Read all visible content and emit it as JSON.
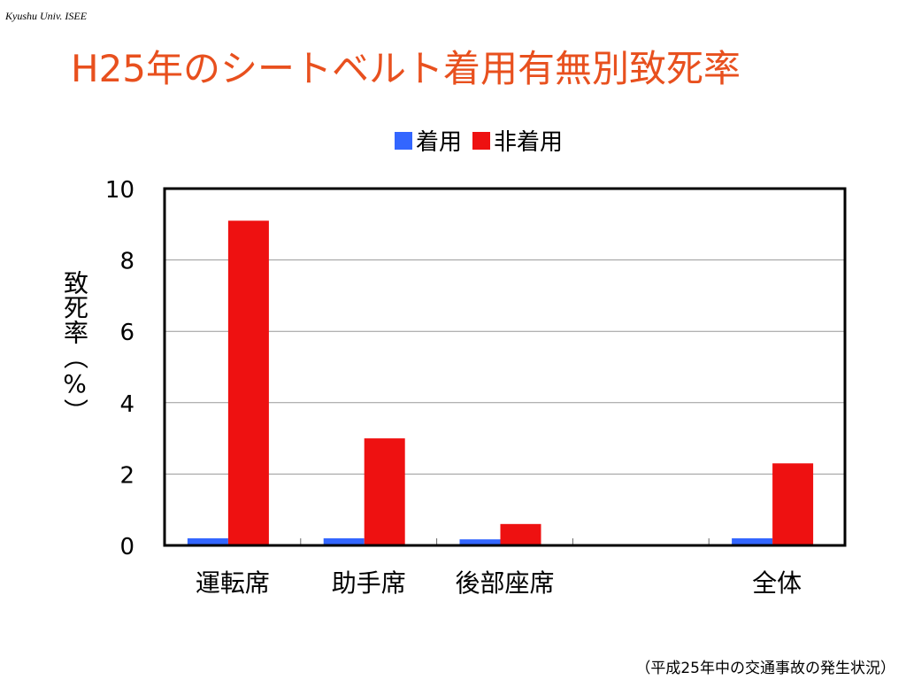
{
  "header": {
    "note": "Kyushu Univ. ISEE",
    "title": "H25年のシートベルト着用有無別致死率"
  },
  "legend": {
    "worn_label": "着用",
    "not_worn_label": "非着用"
  },
  "colors": {
    "worn": "#3366ff",
    "not_worn": "#ee1111",
    "title": "#e8501e"
  },
  "chart_data": {
    "type": "bar",
    "ylabel": "致死率（%）",
    "ylim": [
      0,
      10
    ],
    "yticks": [
      0,
      2,
      4,
      6,
      8,
      10
    ],
    "grid": true,
    "legend_position": "top-center",
    "categories": [
      "運転席",
      "助手席",
      "後部座席",
      "",
      "全体"
    ],
    "series": [
      {
        "name": "着用",
        "values": [
          0.2,
          0.2,
          0.17,
          null,
          0.2
        ]
      },
      {
        "name": "非着用",
        "values": [
          9.1,
          3.0,
          0.6,
          null,
          2.3
        ]
      }
    ]
  },
  "footer": {
    "source": "（平成25年中の交通事故の発生状況）"
  }
}
